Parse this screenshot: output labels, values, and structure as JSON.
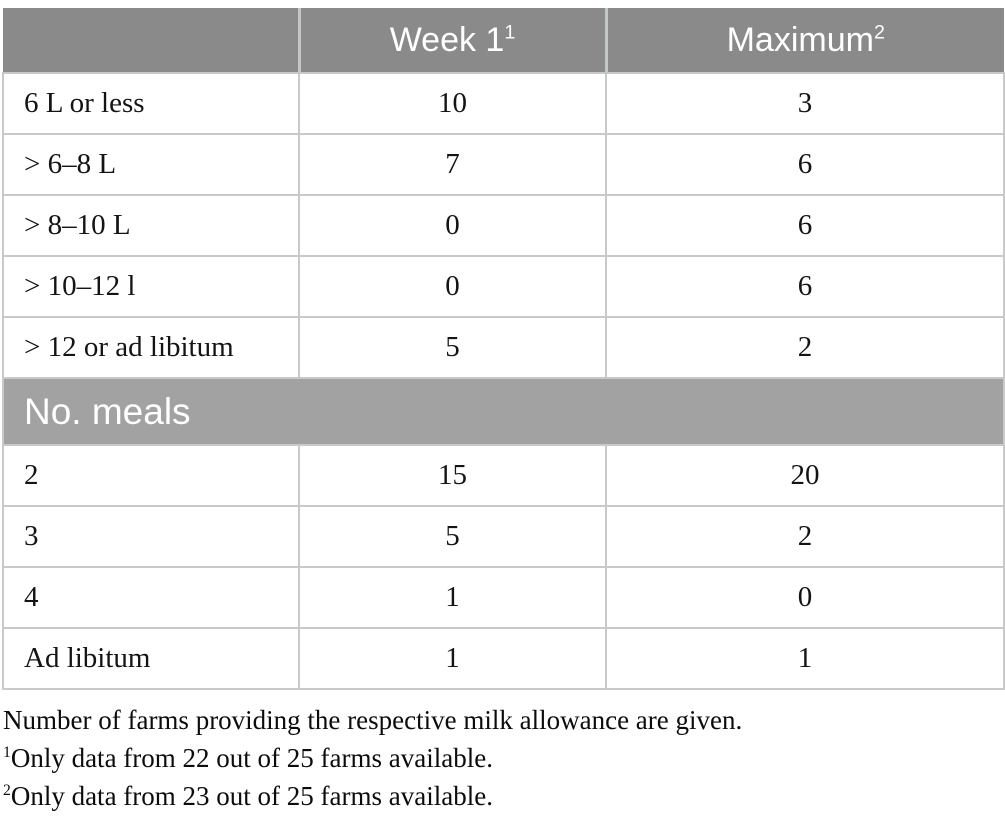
{
  "table": {
    "header": {
      "empty_label": "",
      "week1_label": "Week 1",
      "week1_sup": "1",
      "maximum_label": "Maximum",
      "maximum_sup": "2"
    },
    "rows_allowance": [
      {
        "label": "6 L or less",
        "week1": "10",
        "maximum": "3"
      },
      {
        "label": "> 6–8 L",
        "week1": "7",
        "maximum": "6"
      },
      {
        "label": "> 8–10 L",
        "week1": "0",
        "maximum": "6"
      },
      {
        "label": "> 10–12 l",
        "week1": "0",
        "maximum": "6"
      },
      {
        "label": "> 12 or ad libitum",
        "week1": "5",
        "maximum": "2"
      }
    ],
    "meals_section_header": "No. meals",
    "rows_meals": [
      {
        "label": "2",
        "week1": "15",
        "maximum": "20"
      },
      {
        "label": "3",
        "week1": "5",
        "maximum": "2"
      },
      {
        "label": "4",
        "week1": "1",
        "maximum": "0"
      },
      {
        "label": "Ad libitum",
        "week1": "1",
        "maximum": "1"
      }
    ]
  },
  "footnotes": {
    "caption": "Number of farms providing the respective milk allowance are given.",
    "fn1_sup": "1",
    "fn1_text": "Only data from 22 out of 25 farms available.",
    "fn2_sup": "2",
    "fn2_text": "Only data from 23 out of 25 farms available."
  },
  "colors": {
    "header_bg": "#8a8a8a",
    "section_bg": "#a2a2a2",
    "grid": "#c9c9c9",
    "header_divider": "#c3c7c7"
  }
}
